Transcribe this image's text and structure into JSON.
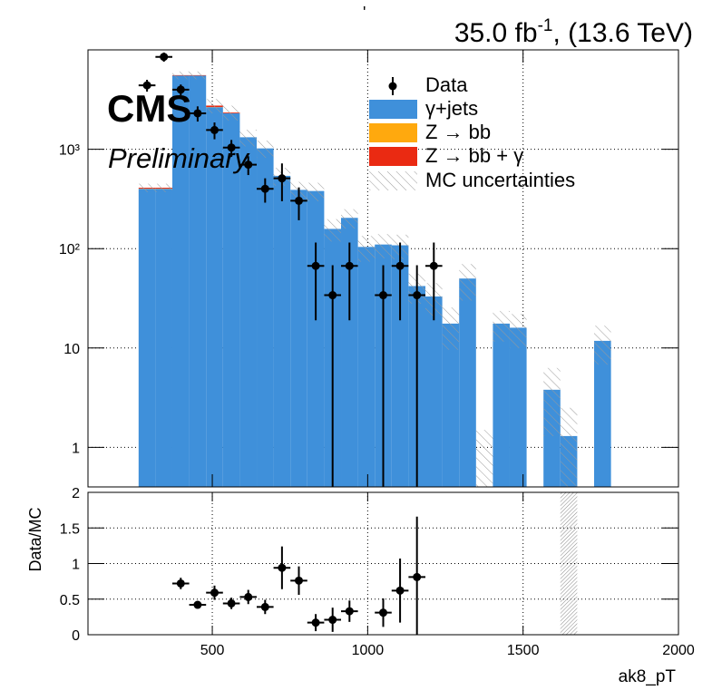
{
  "chart_data": {
    "type": "histogram",
    "title": "'",
    "lumi": "35.0 fb",
    "lumi_exponent": "-1",
    "energy": ", (13.6 TeV)",
    "experiment": "CMS",
    "status": "Preliminary",
    "x_label": "ak8_pT",
    "xlim": [
      100,
      2000
    ],
    "xticks": [
      500,
      1000,
      1500,
      2000
    ],
    "ylim": [
      0.4,
      10000
    ],
    "log_y": true,
    "yticks": [
      1,
      10,
      {
        "value": 100,
        "label": "10²"
      },
      {
        "value": 1000,
        "label": "10³"
      }
    ],
    "grid": true,
    "bins": [
      100,
      154.3,
      208.6,
      262.9,
      317.1,
      371.4,
      425.7,
      480,
      534.3,
      588.6,
      642.9,
      697.1,
      751.4,
      805.7,
      860,
      914.3,
      968.6,
      1022.9,
      1077.1,
      1131.4,
      1185.7,
      1240,
      1294.3,
      1348.6,
      1402.9,
      1457.1,
      1511.4,
      1565.7,
      1620,
      1674.3,
      1728.6,
      1782.9,
      1837.1,
      1891.4,
      1945.7,
      2000
    ],
    "series": [
      {
        "name": "γ+jets",
        "color": "#3f90da",
        "values": [
          null,
          null,
          null,
          400,
          400,
          5500,
          5500,
          2650,
          2300,
          1320,
          1020,
          540,
          390,
          380,
          158,
          204,
          104,
          110,
          108,
          42,
          33,
          17.6,
          50,
          null,
          17.6,
          16,
          null,
          3.8,
          1.3,
          null,
          11.8,
          null,
          null,
          null,
          null
        ]
      },
      {
        "name": "Z → bb",
        "color": "#ffa90e",
        "values": [
          null,
          null,
          null,
          2,
          2,
          5,
          5,
          10,
          4,
          null,
          null,
          null,
          null,
          null,
          null,
          null,
          null,
          null,
          null,
          null,
          null,
          null,
          null,
          null,
          null,
          null,
          null,
          null,
          null,
          null,
          null,
          null,
          null,
          null,
          null
        ]
      },
      {
        "name": "Z → bb + γ",
        "color": "#ea2a12",
        "values": [
          null,
          null,
          null,
          8,
          8,
          60,
          60,
          90,
          40,
          null,
          null,
          null,
          null,
          null,
          null,
          null,
          null,
          null,
          null,
          null,
          null,
          null,
          null,
          null,
          null,
          null,
          null,
          null,
          null,
          null,
          null,
          null,
          null,
          null,
          null
        ]
      }
    ],
    "data": {
      "name": "Data",
      "values": [
        null,
        null,
        null,
        4400,
        8500,
        3980,
        2300,
        1560,
        1040,
        700,
        400,
        510,
        303,
        67,
        34,
        67,
        null,
        34,
        67,
        34,
        67,
        null,
        null,
        null,
        null,
        null,
        null,
        null,
        null,
        null,
        null,
        null,
        null,
        null,
        null
      ],
      "errors": [
        null,
        null,
        null,
        600,
        900,
        500,
        400,
        300,
        200,
        150,
        110,
        210,
        110,
        48,
        34,
        48,
        null,
        34,
        48,
        34,
        48,
        null,
        null,
        null,
        null,
        null,
        null,
        null,
        null,
        null,
        null,
        null,
        null,
        null,
        null
      ]
    },
    "uncertainty": {
      "name": "MC uncertainties",
      "values": [
        null,
        null,
        null,
        40,
        40,
        500,
        500,
        450,
        400,
        250,
        200,
        110,
        80,
        80,
        40,
        45,
        30,
        30,
        30,
        14,
        12,
        8,
        20,
        1.5,
        6,
        6,
        null,
        2.5,
        1.2,
        null,
        5,
        null,
        null,
        null,
        null
      ]
    },
    "ratio": {
      "y_label": "Data/MC",
      "ylim": [
        0,
        2
      ],
      "yticks": [
        0,
        0.5,
        1,
        1.5,
        2
      ],
      "values": [
        null,
        null,
        null,
        null,
        null,
        0.72,
        0.42,
        0.59,
        0.44,
        0.53,
        0.39,
        0.94,
        0.76,
        0.17,
        0.21,
        0.33,
        null,
        0.31,
        0.62,
        0.81,
        null,
        null,
        null,
        null,
        null,
        null,
        null,
        null,
        null,
        null,
        null,
        null,
        null,
        null,
        null
      ],
      "errors": [
        null,
        null,
        null,
        null,
        null,
        0.08,
        0.05,
        0.1,
        0.08,
        0.1,
        0.1,
        0.3,
        0.2,
        0.12,
        0.17,
        0.15,
        null,
        0.2,
        0.45,
        0.85,
        null,
        null,
        null,
        null,
        null,
        null,
        null,
        null,
        null,
        null,
        null,
        null,
        null,
        null,
        null
      ],
      "band": {
        "x": [
          1620,
          1674.3
        ],
        "y": [
          0,
          2
        ]
      }
    }
  }
}
